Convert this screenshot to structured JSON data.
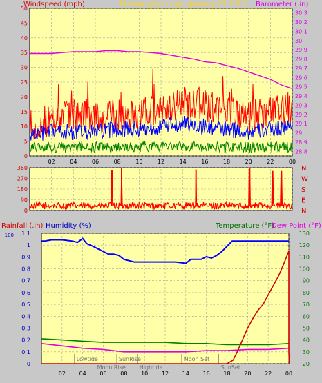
{
  "chart_data": [
    {
      "id": "wind",
      "type": "line",
      "title": "24 hour graph day - January 23 2017",
      "left_label": "Windspeed (mph)",
      "right_label": "Barometer (.in)",
      "colors": {
        "title": "#FFD800",
        "left_label": "#D00000",
        "right_label": "#E000E0",
        "plot_bg": "#FFFFA8"
      },
      "x_ticks": [
        "02",
        "04",
        "06",
        "08",
        "10",
        "12",
        "14",
        "16",
        "18",
        "20",
        "22",
        "00"
      ],
      "y_left": {
        "ticks": [
          "50",
          "45",
          "40",
          "35",
          "30",
          "25",
          "20",
          "15",
          "10",
          "5",
          "0"
        ],
        "range": [
          0,
          50
        ]
      },
      "y_right": {
        "ticks": [
          "30.3",
          "30.2",
          "30.1",
          "30",
          "29.9",
          "29.8",
          "29.7",
          "29.6",
          "29.5",
          "29.4",
          "29.3",
          "29.2",
          "29.1",
          "29",
          "28.9",
          "28.8"
        ],
        "range": [
          28.75,
          30.35
        ]
      },
      "series": [
        {
          "key": "gust",
          "color": "#FF0000",
          "axis": "left",
          "x": [
            0,
            2,
            4,
            6,
            8,
            10,
            12,
            14,
            16,
            18,
            20,
            22,
            24
          ],
          "y": [
            11,
            12,
            14,
            13,
            14,
            14,
            16,
            18,
            17,
            15,
            13,
            15,
            16
          ]
        },
        {
          "key": "speed",
          "color": "#0000FF",
          "axis": "left",
          "x": [
            0,
            2,
            4,
            6,
            8,
            10,
            12,
            14,
            16,
            18,
            20,
            22,
            24
          ],
          "y": [
            7,
            8,
            8,
            8,
            9,
            9,
            10,
            11,
            10,
            9,
            8,
            9,
            10
          ]
        },
        {
          "key": "avg",
          "color": "#008000",
          "axis": "left",
          "x": [
            0,
            2,
            4,
            6,
            8,
            10,
            12,
            14,
            16,
            18,
            20,
            22,
            24
          ],
          "y": [
            3,
            3,
            3,
            3,
            3,
            3,
            3.5,
            3.5,
            3,
            3,
            3,
            3,
            3
          ]
        },
        {
          "key": "baro",
          "color": "#E000E0",
          "axis": "right",
          "x": [
            0,
            1,
            2,
            3,
            4,
            5,
            6,
            7,
            8,
            9,
            10,
            11,
            12,
            13,
            14,
            15,
            16,
            17,
            18,
            19,
            20,
            21,
            22,
            23,
            24
          ],
          "y": [
            29.86,
            29.86,
            29.86,
            29.87,
            29.88,
            29.88,
            29.88,
            29.89,
            29.89,
            29.88,
            29.88,
            29.87,
            29.86,
            29.84,
            29.82,
            29.8,
            29.77,
            29.76,
            29.73,
            29.7,
            29.66,
            29.62,
            29.58,
            29.52,
            29.48
          ]
        }
      ]
    },
    {
      "id": "direction",
      "type": "line",
      "y_ticks": [
        "360",
        "270",
        "180",
        "90",
        "0"
      ],
      "y_range": [
        0,
        360
      ],
      "compass": [
        "N",
        "W",
        "S",
        "E",
        "N"
      ],
      "colors": {
        "line": "#FF0000",
        "plot_bg": "#FFFFA8",
        "compass": "#D00000"
      },
      "x_ticks": [
        "02",
        "04",
        "06",
        "08",
        "10",
        "12",
        "14",
        "16",
        "18",
        "20",
        "22",
        "00"
      ],
      "baseline": 40,
      "spikes": [
        {
          "x": 7.5,
          "y": 335
        },
        {
          "x": 8.4,
          "y": 360
        },
        {
          "x": 15.2,
          "y": 345
        },
        {
          "x": 20.1,
          "y": 360
        },
        {
          "x": 22.2,
          "y": 330
        },
        {
          "x": 23.0,
          "y": 330
        }
      ]
    },
    {
      "id": "climate",
      "type": "line",
      "labels": {
        "rainfall": "Rainfall (.in)",
        "humidity": "Humidity (%)",
        "temperature": "Temperature (°F)",
        "dewpoint": "Dew Point (°F)"
      },
      "colors": {
        "rainfall": "#D00000",
        "humidity": "#0000C0",
        "temperature": "#007000",
        "dewpoint": "#E000E0",
        "plot_bg": "#FFFFA8"
      },
      "x_ticks": [
        "02",
        "04",
        "06",
        "08",
        "10",
        "12",
        "14",
        "16",
        "18",
        "20",
        "22",
        "00"
      ],
      "y_left": {
        "ticks": [
          "1.1",
          "1",
          "0.9",
          "0.8",
          "0.7",
          "0.6",
          "0.5",
          "0.4",
          "0.3",
          "0.2",
          "0.1",
          "0"
        ],
        "range": [
          0,
          1.1
        ],
        "extra_top_tick": "100"
      },
      "y_right": {
        "ticks": [
          "130",
          "120",
          "110",
          "100",
          "90",
          "80",
          "70",
          "60",
          "50",
          "40",
          "30",
          "20"
        ],
        "range": [
          20,
          130
        ]
      },
      "events": [
        {
          "label": "Lowtide",
          "x": 3.2
        },
        {
          "label": "Moon Rise",
          "x": 5.2
        },
        {
          "label": "SunRise",
          "x": 7.3
        },
        {
          "label": "Hightide",
          "x": 9.3
        },
        {
          "label": "Moon Set",
          "x": 13.6
        },
        {
          "label": "SunSet",
          "x": 17.2
        }
      ],
      "series": [
        {
          "key": "humidity",
          "color": "#0000FF",
          "axis": "humidity",
          "x": [
            0,
            0.3,
            1,
            2,
            3,
            3.5,
            4,
            4.4,
            5,
            5.5,
            6,
            6.5,
            7,
            7.5,
            8,
            8.5,
            9,
            10,
            11,
            12,
            13,
            14,
            14.5,
            15,
            15.5,
            16,
            16.5,
            17,
            17.5,
            18,
            18.5,
            19,
            20,
            21,
            22,
            23,
            24
          ],
          "y": [
            94,
            94,
            95,
            95,
            94,
            93,
            96,
            92,
            90,
            88,
            86,
            84,
            84,
            83,
            80,
            79,
            78,
            78,
            78,
            78,
            78,
            77,
            80,
            80,
            80,
            82,
            81,
            83,
            86,
            90,
            94,
            94,
            94,
            94,
            94,
            94,
            94
          ]
        },
        {
          "key": "temperature",
          "color": "#008000",
          "axis": "right",
          "x": [
            0,
            2,
            4,
            6,
            8,
            10,
            12,
            14,
            16,
            18,
            20,
            22,
            24
          ],
          "y": [
            41,
            40,
            39,
            38,
            38,
            38,
            38,
            37,
            37,
            36,
            36,
            36,
            37
          ]
        },
        {
          "key": "dewpoint",
          "color": "#E000E0",
          "axis": "right",
          "x": [
            0,
            2,
            4,
            6,
            8,
            10,
            12,
            14,
            16,
            18,
            20,
            22,
            24
          ],
          "y": [
            37,
            35,
            33,
            32,
            30,
            30,
            30,
            30,
            31,
            31,
            32,
            32,
            33
          ]
        },
        {
          "key": "rainfall",
          "color": "#D00000",
          "axis": "left",
          "x": [
            0,
            17,
            18,
            18.6,
            19,
            19.5,
            20,
            20.5,
            21,
            21.5,
            22,
            22.5,
            23,
            23.5,
            24,
            24,
            24.05
          ],
          "y": [
            0,
            0,
            0,
            0.03,
            0.1,
            0.2,
            0.3,
            0.38,
            0.45,
            0.5,
            0.58,
            0.66,
            0.74,
            0.84,
            0.95,
            0.1,
            0
          ]
        }
      ]
    }
  ]
}
